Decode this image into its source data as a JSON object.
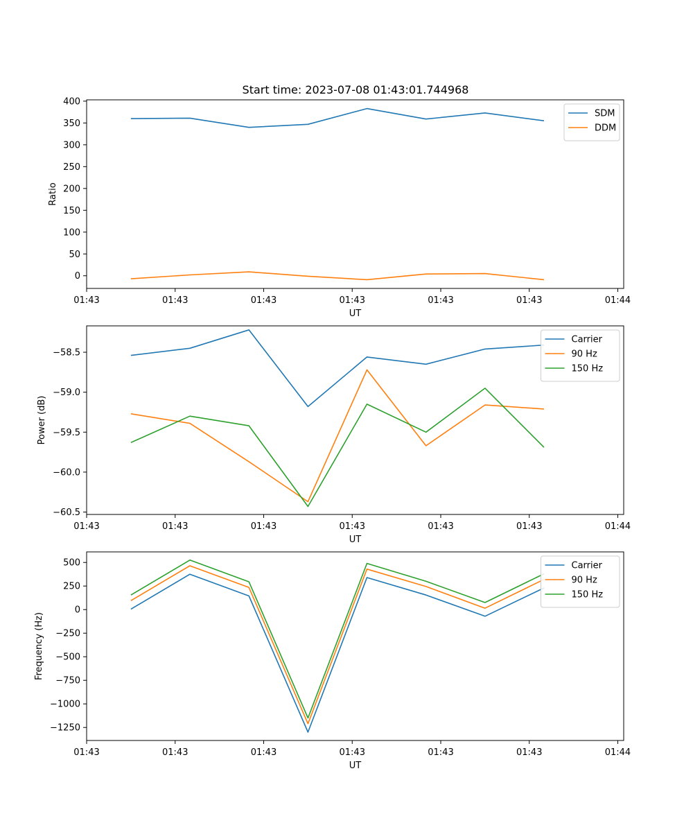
{
  "figure": {
    "title": "Start time: 2023-07-08 01:43:01.744968"
  },
  "colors": {
    "blue": "#1f77b4",
    "orange": "#ff7f0e",
    "green": "#2ca02c"
  },
  "chart_data": [
    {
      "type": "line",
      "xlabel": "UT",
      "ylabel": "Ratio",
      "x": [
        1,
        2,
        3,
        4,
        5,
        6,
        7,
        8
      ],
      "xlim": [
        0.25,
        9.35
      ],
      "xticks": [
        0.25,
        1.75,
        3.25,
        4.75,
        6.25,
        7.75,
        9.25
      ],
      "xtick_labels": [
        "01:43",
        "01:43",
        "01:43",
        "01:43",
        "01:43",
        "01:43",
        "01:44"
      ],
      "ylim": [
        -29,
        403
      ],
      "yticks": [
        0,
        50,
        100,
        150,
        200,
        250,
        300,
        350,
        400
      ],
      "ytick_labels": [
        "0",
        "50",
        "100",
        "150",
        "200",
        "250",
        "300",
        "350",
        "400"
      ],
      "legend": "top-right",
      "series": [
        {
          "name": "SDM",
          "color": "#1f77b4",
          "values": [
            360,
            361,
            340,
            347,
            383,
            359,
            373,
            355
          ]
        },
        {
          "name": "DDM",
          "color": "#ff7f0e",
          "values": [
            -7,
            2,
            9,
            -1,
            -9,
            4,
            5,
            -9
          ]
        }
      ]
    },
    {
      "type": "line",
      "xlabel": "UT",
      "ylabel": "Power (dB)",
      "x": [
        1,
        2,
        3,
        4,
        5,
        6,
        7,
        8
      ],
      "xlim": [
        0.25,
        9.35
      ],
      "xticks": [
        0.25,
        1.75,
        3.25,
        4.75,
        6.25,
        7.75,
        9.25
      ],
      "xtick_labels": [
        "01:43",
        "01:43",
        "01:43",
        "01:43",
        "01:43",
        "01:43",
        "01:44"
      ],
      "ylim": [
        -60.53,
        -58.17
      ],
      "yticks": [
        -58.5,
        -59.0,
        -59.5,
        -60.0,
        -60.5
      ],
      "ytick_labels": [
        "−58.5",
        "−59.0",
        "−59.5",
        "−60.0",
        "−60.5"
      ],
      "legend": "top-right",
      "series": [
        {
          "name": "Carrier",
          "color": "#1f77b4",
          "values": [
            -58.54,
            -58.45,
            -58.22,
            -59.18,
            -58.56,
            -58.65,
            -58.46,
            -58.41
          ]
        },
        {
          "name": "90 Hz",
          "color": "#ff7f0e",
          "values": [
            -59.27,
            -59.39,
            -59.87,
            -60.37,
            -58.72,
            -59.67,
            -59.16,
            -59.21
          ]
        },
        {
          "name": "150 Hz",
          "color": "#2ca02c",
          "values": [
            -59.63,
            -59.3,
            -59.42,
            -60.43,
            -59.15,
            -59.5,
            -58.95,
            -59.69
          ]
        }
      ]
    },
    {
      "type": "line",
      "xlabel": "UT",
      "ylabel": "Frequency (Hz)",
      "x": [
        1,
        2,
        3,
        4,
        5,
        6,
        7,
        8
      ],
      "xlim": [
        0.25,
        9.35
      ],
      "xticks": [
        0.25,
        1.75,
        3.25,
        4.75,
        6.25,
        7.75,
        9.25
      ],
      "xtick_labels": [
        "01:43",
        "01:43",
        "01:43",
        "01:43",
        "01:43",
        "01:43",
        "01:44"
      ],
      "ylim": [
        -1388,
        612
      ],
      "yticks": [
        500,
        250,
        0,
        -250,
        -500,
        -750,
        -1000,
        -1250
      ],
      "ytick_labels": [
        "500",
        "250",
        "0",
        "−250",
        "−500",
        "−750",
        "−1000",
        "−1250"
      ],
      "legend": "top-right",
      "series": [
        {
          "name": "Carrier",
          "color": "#1f77b4",
          "values": [
            5,
            375,
            145,
            -1300,
            340,
            155,
            -70,
            230
          ]
        },
        {
          "name": "90 Hz",
          "color": "#ff7f0e",
          "values": [
            95,
            465,
            235,
            -1210,
            430,
            245,
            15,
            320
          ]
        },
        {
          "name": "150 Hz",
          "color": "#2ca02c",
          "values": [
            155,
            525,
            295,
            -1150,
            490,
            300,
            75,
            380
          ]
        }
      ]
    }
  ]
}
